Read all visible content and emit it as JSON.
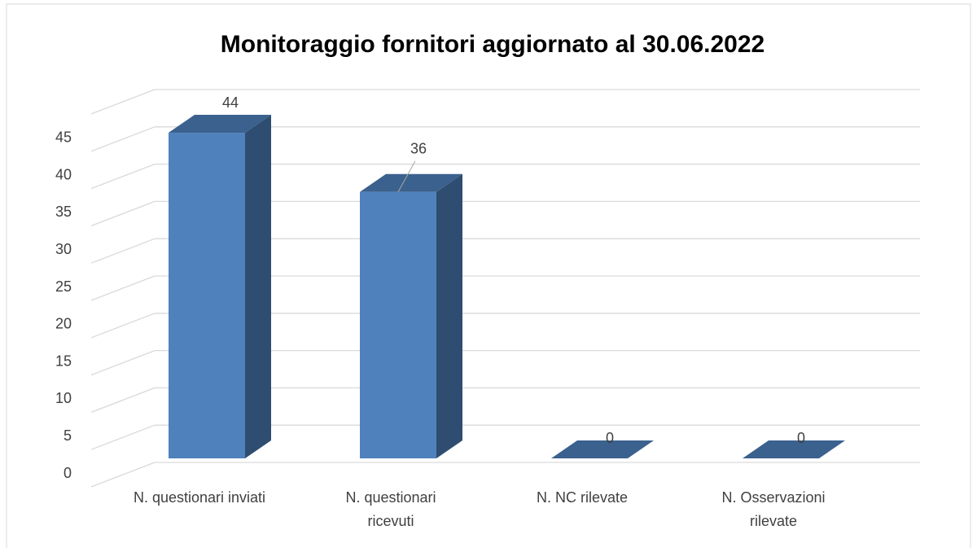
{
  "chart_data": {
    "type": "bar3d",
    "title": "Monitoraggio fornitori aggiornato al 30.06.2022",
    "categories": [
      "N. questionari inviati",
      "N. questionari ricevuti",
      "N. NC rilevate",
      "N. Osservazioni rilevate"
    ],
    "values": [
      44,
      36,
      0,
      0
    ],
    "color": "#4f81bd",
    "ylim": [
      0,
      50
    ],
    "yticks": [
      0,
      5,
      10,
      15,
      20,
      25,
      30,
      35,
      40,
      45
    ],
    "grid": true
  }
}
